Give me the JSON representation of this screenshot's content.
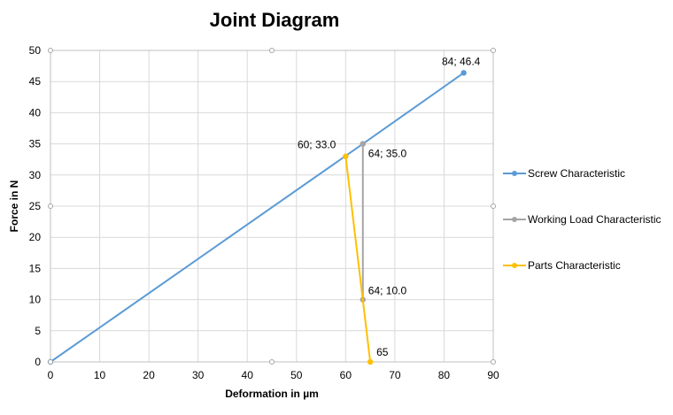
{
  "chart_data": {
    "type": "line",
    "title": "Joint Diagram",
    "xlabel": "Deformation in µm",
    "ylabel": "Force in N",
    "xlim": [
      0,
      90
    ],
    "ylim": [
      0,
      50
    ],
    "xticks": [
      0,
      10,
      20,
      30,
      40,
      50,
      60,
      70,
      80,
      90
    ],
    "yticks": [
      0,
      5,
      10,
      15,
      20,
      25,
      30,
      35,
      40,
      45,
      50
    ],
    "grid": true,
    "legend_position": "right",
    "series": [
      {
        "name": "Screw Characteristic",
        "color": "#5b9bd5",
        "points": [
          [
            0,
            0
          ],
          [
            63.5,
            35.0
          ],
          [
            84,
            46.4
          ]
        ],
        "labels": [
          null,
          null,
          "84; 46.4"
        ]
      },
      {
        "name": "Working Load Characteristic",
        "color": "#a5a5a5",
        "points": [
          [
            63.5,
            35.0
          ],
          [
            63.5,
            10.0
          ]
        ],
        "labels": [
          "64; 35.0",
          "64; 10.0"
        ]
      },
      {
        "name": "Parts Characteristic",
        "color": "#ffc000",
        "points": [
          [
            60,
            33.0
          ],
          [
            65,
            0
          ]
        ],
        "labels": [
          "60; 33.0",
          "65"
        ]
      }
    ]
  }
}
